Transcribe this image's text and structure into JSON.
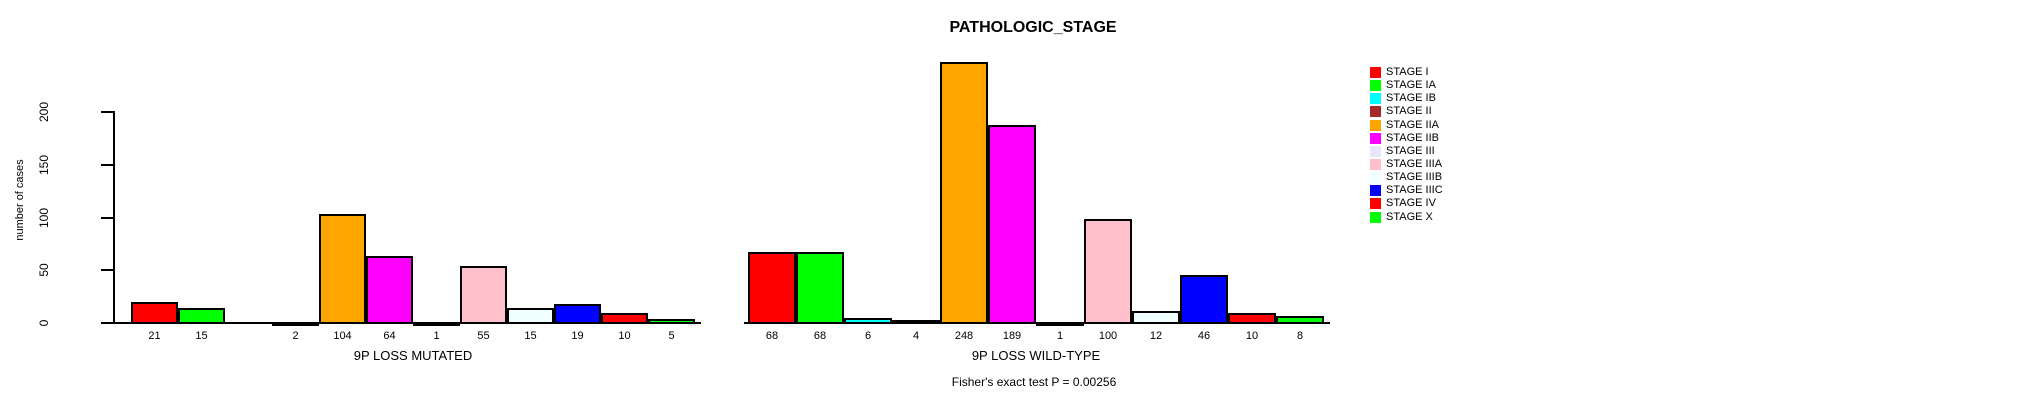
{
  "chart_data": {
    "type": "bar",
    "title": "PATHOLOGIC_STAGE",
    "ylabel": "number of cases",
    "yticks": [
      0,
      50,
      100,
      150,
      200
    ],
    "ylim": [
      0,
      248
    ],
    "grid": false,
    "legend_position": "right",
    "categories": [
      "STAGE I",
      "STAGE IA",
      "STAGE IB",
      "STAGE II",
      "STAGE IIA",
      "STAGE IIB",
      "STAGE III",
      "STAGE IIIA",
      "STAGE IIIB",
      "STAGE IIIC",
      "STAGE IV",
      "STAGE X"
    ],
    "colors": [
      "#FF0000",
      "#00FF00",
      "#00FFFF",
      "#A52A2A",
      "#FFA500",
      "#FF00FF",
      "#E6E6FA",
      "#FFC0CB",
      "#F0FFFF",
      "#0000FF",
      "#FF0000",
      "#00FF00"
    ],
    "groups": [
      {
        "xlabel": "9P LOSS MUTATED",
        "values": [
          21,
          15,
          0,
          2,
          104,
          64,
          1,
          55,
          15,
          19,
          10,
          5
        ],
        "labels": [
          "21",
          "15",
          "",
          "2",
          "104",
          "64",
          "1",
          "55",
          "15",
          "19",
          "10",
          "5"
        ]
      },
      {
        "xlabel": "9P LOSS WILD-TYPE",
        "values": [
          68,
          68,
          6,
          4,
          248,
          189,
          1,
          100,
          12,
          46,
          10,
          8
        ],
        "labels": [
          "68",
          "68",
          "6",
          "4",
          "248",
          "189",
          "1",
          "100",
          "12",
          "46",
          "10",
          "8"
        ]
      }
    ],
    "annotation": "Fisher's exact test P = 0.00256"
  }
}
